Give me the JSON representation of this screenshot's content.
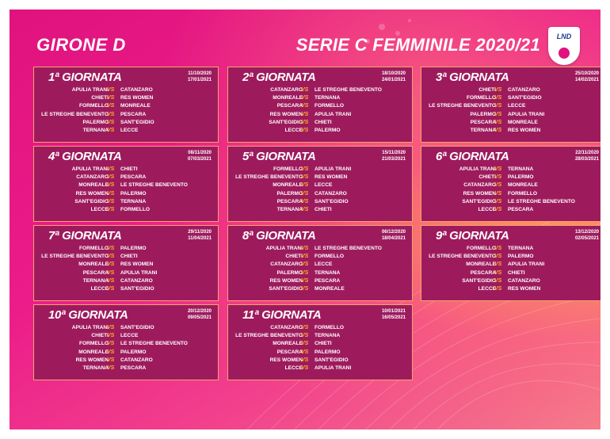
{
  "header": {
    "girone": "GIRONE D",
    "title": "SERIE C FEMMINILE 2020/21",
    "logo_text": "LND",
    "vs_label": "VS"
  },
  "colors": {
    "background": "#ec1c8a",
    "card": "#9d1b5d",
    "card_border": "#f4a46e",
    "vs": "#ffb02e"
  },
  "rounds": [
    {
      "title": "1ª GIORNATA",
      "date_andata": "11/10/2020",
      "date_ritorno": "17/01/2021",
      "matches": [
        {
          "home": "APULIA TRANI",
          "away": "CATANZARO"
        },
        {
          "home": "CHIETI",
          "away": "RES WOMEN"
        },
        {
          "home": "FORMELLO",
          "away": "MONREALE"
        },
        {
          "home": "LE STREGHE BENEVENTO",
          "away": "PESCARA"
        },
        {
          "home": "PALERMO",
          "away": "SANT'EGIDIO"
        },
        {
          "home": "TERNANA",
          "away": "LECCE"
        }
      ]
    },
    {
      "title": "2ª GIORNATA",
      "date_andata": "18/10/2020",
      "date_ritorno": "24/01/2021",
      "matches": [
        {
          "home": "CATANZARO",
          "away": "LE STREGHE BENEVENTO"
        },
        {
          "home": "MONREALE",
          "away": "TERNANA"
        },
        {
          "home": "PESCARA",
          "away": "FORMELLO"
        },
        {
          "home": "RES WOMEN",
          "away": "APULIA TRANI"
        },
        {
          "home": "SANT'EGIDIO",
          "away": "CHIETI"
        },
        {
          "home": "LECCE",
          "away": "PALERMO"
        }
      ]
    },
    {
      "title": "3ª GIORNATA",
      "date_andata": "25/10/2020",
      "date_ritorno": "14/02/2021",
      "matches": [
        {
          "home": "CHIETI",
          "away": "CATANZARO"
        },
        {
          "home": "FORMELLO",
          "away": "SANT'EGIDIO"
        },
        {
          "home": "LE STREGHE BENEVENTO",
          "away": "LECCE"
        },
        {
          "home": "PALERMO",
          "away": "APULIA TRANI"
        },
        {
          "home": "PESCARA",
          "away": "MONREALE"
        },
        {
          "home": "TERNANA",
          "away": "RES WOMEN"
        }
      ]
    },
    {
      "title": "4ª GIORNATA",
      "date_andata": "08/11/2020",
      "date_ritorno": "07/03/2021",
      "matches": [
        {
          "home": "APULIA TRANI",
          "away": "CHIETI"
        },
        {
          "home": "CATANZARO",
          "away": "PESCARA"
        },
        {
          "home": "MONREALE",
          "away": "LE STREGHE BENEVENTO"
        },
        {
          "home": "RES WOMEN",
          "away": "PALERMO"
        },
        {
          "home": "SANT'EGIDIO",
          "away": "TERNANA"
        },
        {
          "home": "LECCE",
          "away": "FORMELLO"
        }
      ]
    },
    {
      "title": "5ª GIORNATA",
      "date_andata": "15/11/2020",
      "date_ritorno": "21/03/2021",
      "matches": [
        {
          "home": "FORMELLO",
          "away": "APULIA TRANI"
        },
        {
          "home": "LE STREGHE BENEVENTO",
          "away": "RES WOMEN"
        },
        {
          "home": "MONREALE",
          "away": "LECCE"
        },
        {
          "home": "PALERMO",
          "away": "CATANZARO"
        },
        {
          "home": "PESCARA",
          "away": "SANT'EGIDIO"
        },
        {
          "home": "TERNANA",
          "away": "CHIETI"
        }
      ]
    },
    {
      "title": "6ª GIORNATA",
      "date_andata": "22/11/2020",
      "date_ritorno": "28/03/2021",
      "matches": [
        {
          "home": "APULIA TRANI",
          "away": "TERNANA"
        },
        {
          "home": "CHIETI",
          "away": "PALERMO"
        },
        {
          "home": "CATANZARO",
          "away": "MONREALE"
        },
        {
          "home": "RES WOMEN",
          "away": "FORMELLO"
        },
        {
          "home": "SANT'EGIDIO",
          "away": "LE STREGHE BENEVENTO"
        },
        {
          "home": "LECCE",
          "away": "PESCARA"
        }
      ]
    },
    {
      "title": "7ª GIORNATA",
      "date_andata": "29/11/2020",
      "date_ritorno": "11/04/2021",
      "matches": [
        {
          "home": "FORMELLO",
          "away": "PALERMO"
        },
        {
          "home": "LE STREGHE BENEVENTO",
          "away": "CHIETI"
        },
        {
          "home": "MONREALE",
          "away": "RES WOMEN"
        },
        {
          "home": "PESCARA",
          "away": "APULIA TRANI"
        },
        {
          "home": "TERNANA",
          "away": "CATANZARO"
        },
        {
          "home": "LECCE",
          "away": "SANT'EGIDIO"
        }
      ]
    },
    {
      "title": "8ª GIORNATA",
      "date_andata": "06/12/2020",
      "date_ritorno": "18/04/2021",
      "matches": [
        {
          "home": "APULIA TRANI",
          "away": "LE STREGHE BENEVENTO"
        },
        {
          "home": "CHIETI",
          "away": "FORMELLO"
        },
        {
          "home": "CATANZARO",
          "away": "LECCE"
        },
        {
          "home": "PALERMO",
          "away": "TERNANA"
        },
        {
          "home": "RES WOMEN",
          "away": "PESCARA"
        },
        {
          "home": "SANT'EGIDIO",
          "away": "MONREALE"
        }
      ]
    },
    {
      "title": "9ª GIORNATA",
      "date_andata": "13/12/2020",
      "date_ritorno": "02/05/2021",
      "matches": [
        {
          "home": "FORMELLO",
          "away": "TERNANA"
        },
        {
          "home": "LE STREGHE BENEVENTO",
          "away": "PALERMO"
        },
        {
          "home": "MONREALE",
          "away": "APULIA TRANI"
        },
        {
          "home": "PESCARA",
          "away": "CHIETI"
        },
        {
          "home": "SANT'EGIDIO",
          "away": "CATANZARO"
        },
        {
          "home": "LECCE",
          "away": "RES WOMEN"
        }
      ]
    },
    {
      "title": "10ª GIORNATA",
      "date_andata": "20/12/2020",
      "date_ritorno": "09/05/2021",
      "matches": [
        {
          "home": "APULIA TRANI",
          "away": "SANT'EGIDIO"
        },
        {
          "home": "CHIETI",
          "away": "LECCE"
        },
        {
          "home": "FORMELLO",
          "away": "LE STREGHE BENEVENTO"
        },
        {
          "home": "MONREALE",
          "away": "PALERMO"
        },
        {
          "home": "RES WOMEN",
          "away": "CATANZARO"
        },
        {
          "home": "TERNANA",
          "away": "PESCARA"
        }
      ]
    },
    {
      "title": "11ª GIORNATA",
      "date_andata": "10/01/2021",
      "date_ritorno": "16/05/2021",
      "matches": [
        {
          "home": "CATANZARO",
          "away": "FORMELLO"
        },
        {
          "home": "LE STREGHE BENEVENTO",
          "away": "TERNANA"
        },
        {
          "home": "MONREALE",
          "away": "CHIETI"
        },
        {
          "home": "PESCARA",
          "away": "PALERMO"
        },
        {
          "home": "RES WOMEN",
          "away": "SANT'EGIDIO"
        },
        {
          "home": "LECCE",
          "away": "APULIA TRANI"
        }
      ]
    }
  ]
}
